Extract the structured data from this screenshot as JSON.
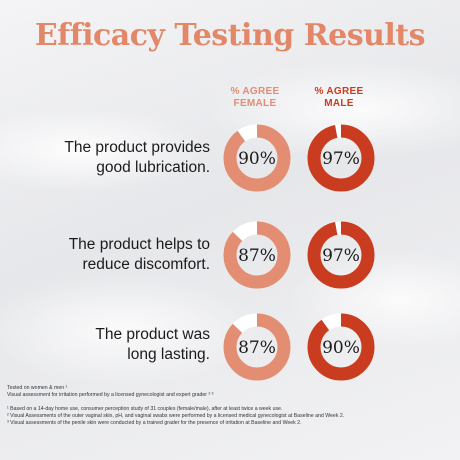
{
  "title": "Efficacy Testing Results",
  "colors": {
    "female": "#e38d72",
    "male": "#c93c1f",
    "title": "#e28767"
  },
  "chart_data": {
    "type": "donut",
    "columns": [
      {
        "line1": "% AGREE",
        "line2": "FEMALE"
      },
      {
        "line1": "% AGREE",
        "line2": "MALE"
      }
    ],
    "rows": [
      {
        "statement_line1": "The product provides",
        "statement_line2": "good lubrication.",
        "female_label": "90%",
        "male_label": "97%"
      },
      {
        "statement_line1": "The product helps to",
        "statement_line2": "reduce discomfort.",
        "female_label": "87%",
        "male_label": "97%"
      },
      {
        "statement_line1": "The product was",
        "statement_line2": "long lasting.",
        "female_label": "87%",
        "male_label": "90%"
      }
    ],
    "values": {
      "female": [
        90,
        87,
        87
      ],
      "male": [
        97,
        97,
        90
      ]
    }
  },
  "footnotes": {
    "tested": "Tested on women & men ¹",
    "visual": "Visual assessment for irritation performed by a licensed gynecologist and expert grader ² ³",
    "note1": "¹ Based on a 14-day home use, consumer perception study of 31 couples (female/male), after at least twice a week use.",
    "note2": "² Visual Assessments of the outer vaginal skin, pH, and vaginal swabs were performed by a licensed medical gynecologist at Baseline and Week 2.",
    "note3": "³ Visual assessments of the penile skin were conducted by a trained grader for the presence of irritation at Baseline and Week 2."
  }
}
